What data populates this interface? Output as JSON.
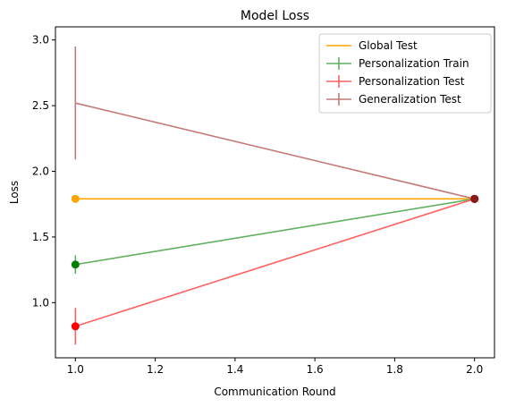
{
  "chart_data": {
    "type": "line",
    "title": "Model Loss",
    "xlabel": "Communication Round",
    "ylabel": "Loss",
    "xlim": [
      0.95,
      2.05
    ],
    "ylim": [
      0.58,
      3.1
    ],
    "xticks": [
      1.0,
      1.2,
      1.4,
      1.6,
      1.8,
      2.0
    ],
    "xtick_labels": [
      "1.0",
      "1.2",
      "1.4",
      "1.6",
      "1.8",
      "2.0"
    ],
    "yticks": [
      1.0,
      1.5,
      2.0,
      2.5,
      3.0
    ],
    "ytick_labels": [
      "1.0",
      "1.5",
      "2.0",
      "2.5",
      "3.0"
    ],
    "grid": false,
    "legend_position": "top-right",
    "series": [
      {
        "name": "Global Test",
        "color": "#ffa500",
        "x": [
          1,
          2
        ],
        "y": [
          1.79,
          1.79
        ],
        "yerr": null,
        "marker_colors": [
          "#ffa500",
          "#8b1a1a"
        ]
      },
      {
        "name": "Personalization Train",
        "color": "#60b060",
        "x": [
          1,
          2
        ],
        "y": [
          1.29,
          1.79
        ],
        "yerr": [
          0.07,
          0
        ],
        "marker_colors": [
          "#008000",
          "#8b1a1a"
        ]
      },
      {
        "name": "Personalization Test",
        "color": "#ff6060",
        "x": [
          1,
          2
        ],
        "y": [
          0.82,
          1.79
        ],
        "yerr": [
          0.14,
          0
        ],
        "marker_colors": [
          "#ff0000",
          "#8b1a1a"
        ]
      },
      {
        "name": "Generalization Test",
        "color": "#c47a78",
        "x": [
          1,
          2
        ],
        "y": [
          2.52,
          1.79
        ],
        "yerr": [
          0.43,
          0
        ],
        "marker_colors": [
          null,
          "#8b1a1a"
        ]
      }
    ]
  }
}
